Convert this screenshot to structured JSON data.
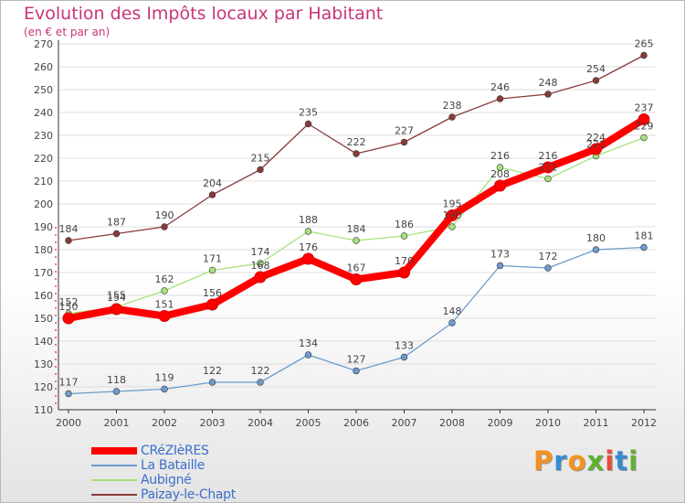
{
  "chart_data": {
    "type": "line",
    "title": "Evolution des Impôts locaux par Habitant",
    "subtitle": "(en € et par an)",
    "x": [
      "2000",
      "2001",
      "2002",
      "2003",
      "2004",
      "2005",
      "2006",
      "2007",
      "2008",
      "2009",
      "2010",
      "2011",
      "2012"
    ],
    "ylim": [
      110,
      270
    ],
    "yticks": [
      110,
      120,
      130,
      140,
      150,
      160,
      170,
      180,
      190,
      200,
      210,
      220,
      230,
      240,
      250,
      260,
      270
    ],
    "series": [
      {
        "name": "CRéZIèRES",
        "color": "#ff0000",
        "emphasis": true,
        "values": [
          150,
          154,
          151,
          156,
          168,
          176,
          167,
          170,
          195,
          208,
          216,
          224,
          237
        ]
      },
      {
        "name": "La Bataille",
        "color": "#6c9ccf",
        "emphasis": false,
        "values": [
          117,
          118,
          119,
          122,
          122,
          134,
          127,
          133,
          148,
          173,
          172,
          180,
          181
        ]
      },
      {
        "name": "Aubigné",
        "color": "#a6e27c",
        "emphasis": false,
        "values": [
          152,
          155,
          162,
          171,
          174,
          188,
          184,
          186,
          190,
          216,
          211,
          221,
          229
        ]
      },
      {
        "name": "Paizay-le-Chapt",
        "color": "#8a3a3a",
        "emphasis": false,
        "values": [
          184,
          187,
          190,
          204,
          215,
          235,
          222,
          227,
          238,
          246,
          248,
          254,
          265
        ]
      }
    ]
  },
  "brand": {
    "letters": [
      "P",
      "r",
      "o",
      "x",
      "i",
      "t",
      "i"
    ],
    "colors": [
      "#f39221",
      "#3a8ad1",
      "#f39221",
      "#5fb130",
      "#e74c3c",
      "#3a8ad1",
      "#5fb130"
    ]
  }
}
